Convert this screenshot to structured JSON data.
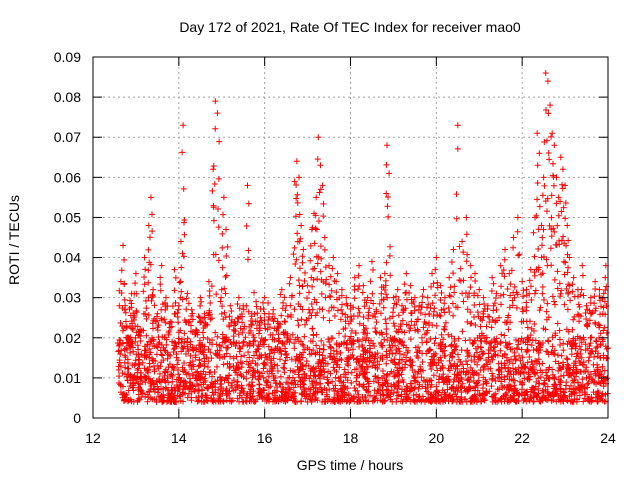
{
  "chart_data": {
    "type": "scatter",
    "title": "Day 172 of 2021, Rate Of TEC Index for receiver mao0",
    "xlabel": "GPS time / hours",
    "ylabel": "ROTI / TECUs",
    "xlim": [
      12,
      24
    ],
    "ylim": [
      0,
      0.09
    ],
    "x_ticks": [
      12,
      14,
      16,
      18,
      20,
      22,
      24
    ],
    "x_tick_labels": [
      "12",
      "14",
      "16",
      "18",
      "20",
      "22",
      "24"
    ],
    "y_ticks": [
      0,
      0.01,
      0.02,
      0.03,
      0.04,
      0.05,
      0.06,
      0.07,
      0.08,
      0.09
    ],
    "y_tick_labels": [
      "0",
      "0.01",
      "0.02",
      "0.03",
      "0.04",
      "0.05",
      "0.06",
      "0.07",
      "0.08",
      "0.09"
    ],
    "grid": true,
    "marker": "+",
    "color": "#ff0000",
    "series": [
      {
        "name": "ROTI",
        "x": [
          12.6,
          12.65,
          12.7,
          12.75,
          12.8,
          12.85,
          12.9,
          12.95,
          13.0,
          13.1,
          13.2,
          13.3,
          13.35,
          13.4,
          13.5,
          13.6,
          13.7,
          13.8,
          13.9,
          14.0,
          14.05,
          14.1,
          14.2,
          14.3,
          14.4,
          14.5,
          14.6,
          14.7,
          14.8,
          14.85,
          14.9,
          15.0,
          15.05,
          15.1,
          15.2,
          15.3,
          15.4,
          15.5,
          15.6,
          15.7,
          15.8,
          15.9,
          16.0,
          16.1,
          16.2,
          16.3,
          16.4,
          16.5,
          16.6,
          16.7,
          16.75,
          16.8,
          16.85,
          16.9,
          17.0,
          17.1,
          17.15,
          17.2,
          17.25,
          17.3,
          17.35,
          17.4,
          17.5,
          17.6,
          17.7,
          17.8,
          17.9,
          18.0,
          18.1,
          18.2,
          18.3,
          18.4,
          18.5,
          18.6,
          18.7,
          18.8,
          18.85,
          18.9,
          19.0,
          19.1,
          19.2,
          19.3,
          19.4,
          19.5,
          19.6,
          19.7,
          19.8,
          19.9,
          20.0,
          20.1,
          20.2,
          20.3,
          20.4,
          20.5,
          20.6,
          20.7,
          20.8,
          20.9,
          21.0,
          21.1,
          21.2,
          21.3,
          21.4,
          21.5,
          21.6,
          21.7,
          21.8,
          21.9,
          22.0,
          22.1,
          22.2,
          22.3,
          22.35,
          22.4,
          22.45,
          22.5,
          22.55,
          22.6,
          22.65,
          22.7,
          22.75,
          22.8,
          22.85,
          22.9,
          22.95,
          23.0,
          23.05,
          23.1,
          23.2,
          23.3,
          23.4,
          23.5,
          23.6,
          23.7,
          23.8,
          23.9,
          23.95
        ],
        "y": [
          0.012,
          0.034,
          0.043,
          0.028,
          0.02,
          0.018,
          0.031,
          0.025,
          0.036,
          0.022,
          0.04,
          0.048,
          0.055,
          0.032,
          0.026,
          0.038,
          0.03,
          0.024,
          0.037,
          0.028,
          0.044,
          0.073,
          0.031,
          0.027,
          0.022,
          0.03,
          0.026,
          0.034,
          0.062,
          0.079,
          0.076,
          0.032,
          0.055,
          0.047,
          0.028,
          0.024,
          0.03,
          0.028,
          0.058,
          0.026,
          0.029,
          0.025,
          0.03,
          0.026,
          0.027,
          0.024,
          0.032,
          0.028,
          0.035,
          0.059,
          0.064,
          0.06,
          0.048,
          0.042,
          0.033,
          0.047,
          0.051,
          0.055,
          0.07,
          0.063,
          0.058,
          0.045,
          0.038,
          0.04,
          0.036,
          0.032,
          0.03,
          0.028,
          0.035,
          0.038,
          0.033,
          0.03,
          0.039,
          0.027,
          0.035,
          0.036,
          0.068,
          0.061,
          0.03,
          0.032,
          0.028,
          0.036,
          0.033,
          0.03,
          0.028,
          0.032,
          0.03,
          0.036,
          0.04,
          0.033,
          0.03,
          0.035,
          0.042,
          0.073,
          0.044,
          0.05,
          0.038,
          0.036,
          0.032,
          0.03,
          0.028,
          0.035,
          0.031,
          0.038,
          0.042,
          0.036,
          0.045,
          0.05,
          0.034,
          0.032,
          0.037,
          0.05,
          0.071,
          0.066,
          0.048,
          0.06,
          0.086,
          0.084,
          0.078,
          0.071,
          0.068,
          0.06,
          0.055,
          0.065,
          0.062,
          0.058,
          0.048,
          0.04,
          0.035,
          0.032,
          0.038,
          0.028,
          0.03,
          0.034,
          0.032,
          0.031,
          0.038
        ]
      }
    ],
    "background_band": {
      "x_range": [
        12.6,
        24
      ],
      "typical_min": 0.004,
      "typical_max": 0.02,
      "description_density": "dense"
    }
  }
}
